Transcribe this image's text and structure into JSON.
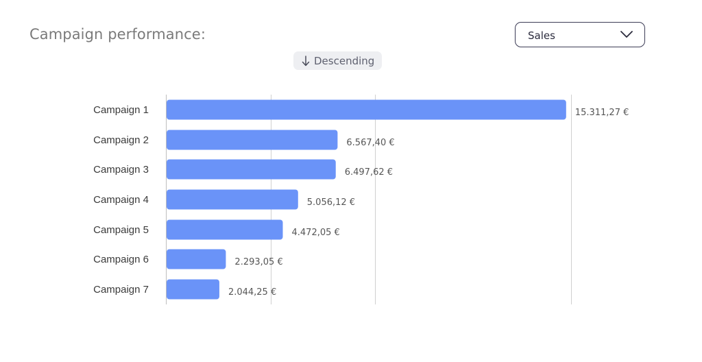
{
  "header": {
    "title": "Campaign performance:"
  },
  "metric_select": {
    "selected": "Sales",
    "icon": "chevron-down-icon"
  },
  "sort_toggle": {
    "label": "Descending",
    "icon": "arrow-down-icon"
  },
  "colors": {
    "bar": "#6a93f8",
    "grid": "#cfcfcf",
    "axis": "#bdbdbd"
  },
  "chart_data": {
    "type": "bar",
    "orientation": "horizontal",
    "categories": [
      "Campaign 1",
      "Campaign 2",
      "Campaign 3",
      "Campaign 4",
      "Campaign 5",
      "Campaign 6",
      "Campaign 7"
    ],
    "values": [
      15311.27,
      6567.4,
      6497.62,
      5056.12,
      4472.05,
      2293.05,
      2044.25
    ],
    "value_labels": [
      "15.311,27 €",
      "6.567,40 €",
      "6.497,62 €",
      "5.056,12 €",
      "4.472,05 €",
      "2.293,05 €",
      "2.044,25 €"
    ],
    "xlim": [
      0,
      15500
    ],
    "gridlines": [
      4000,
      8000,
      15500
    ],
    "grid": true,
    "title": "",
    "xlabel": "",
    "ylabel": ""
  }
}
